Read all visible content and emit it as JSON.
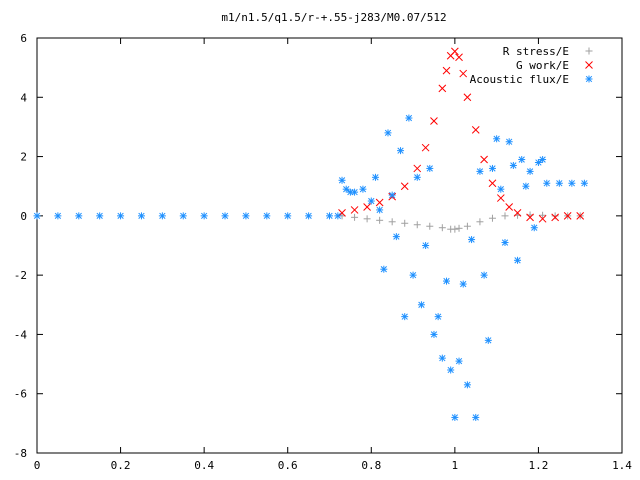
{
  "chart_data": {
    "type": "scatter",
    "title": "m1/n1.5/q1.5/r-+.55-j283/M0.07/512",
    "xlabel": "",
    "ylabel": "",
    "xlim": [
      0,
      1.4
    ],
    "ylim": [
      -8,
      6
    ],
    "x_ticks": [
      "0",
      "0.2",
      "0.4",
      "0.6",
      "0.8",
      "1",
      "1.2",
      "1.4"
    ],
    "y_ticks": [
      "6",
      "4",
      "2",
      "0",
      "-2",
      "-4",
      "-6",
      "-8"
    ],
    "grid": false,
    "legend_position": "top-right",
    "series": [
      {
        "name": "R stress/E",
        "marker": "+",
        "color": "#a0a0a0",
        "x": [
          0.73,
          0.76,
          0.79,
          0.82,
          0.85,
          0.88,
          0.91,
          0.94,
          0.97,
          0.99,
          1.0,
          1.01,
          1.03,
          1.06,
          1.09,
          1.12,
          1.15,
          1.18,
          1.21,
          1.24,
          1.27,
          1.3
        ],
        "y": [
          0.0,
          -0.05,
          -0.1,
          -0.15,
          -0.2,
          -0.25,
          -0.3,
          -0.35,
          -0.4,
          -0.45,
          -0.45,
          -0.42,
          -0.35,
          -0.2,
          -0.08,
          0.0,
          0.02,
          0.03,
          0.02,
          0.0,
          0.0,
          0.0
        ]
      },
      {
        "name": "G work/E",
        "marker": "x",
        "color": "#ff0000",
        "x": [
          0.73,
          0.76,
          0.79,
          0.82,
          0.85,
          0.88,
          0.91,
          0.93,
          0.95,
          0.97,
          0.98,
          0.99,
          1.0,
          1.01,
          1.02,
          1.03,
          1.05,
          1.07,
          1.09,
          1.11,
          1.13,
          1.15,
          1.18,
          1.21,
          1.24,
          1.27,
          1.3
        ],
        "y": [
          0.1,
          0.2,
          0.3,
          0.45,
          0.65,
          1.0,
          1.6,
          2.3,
          3.2,
          4.3,
          4.9,
          5.4,
          5.55,
          5.35,
          4.8,
          4.0,
          2.9,
          1.9,
          1.1,
          0.6,
          0.3,
          0.1,
          -0.05,
          -0.1,
          -0.05,
          0.0,
          0.0
        ]
      },
      {
        "name": "Acoustic flux/E",
        "marker": "*",
        "color": "#1e90ff",
        "x": [
          0.0,
          0.05,
          0.1,
          0.15,
          0.2,
          0.25,
          0.3,
          0.35,
          0.4,
          0.45,
          0.5,
          0.55,
          0.6,
          0.65,
          0.7,
          0.72,
          0.73,
          0.74,
          0.75,
          0.76,
          0.78,
          0.8,
          0.81,
          0.82,
          0.83,
          0.84,
          0.85,
          0.86,
          0.87,
          0.88,
          0.89,
          0.9,
          0.91,
          0.92,
          0.93,
          0.94,
          0.95,
          0.96,
          0.97,
          0.98,
          0.99,
          1.0,
          1.01,
          1.02,
          1.03,
          1.04,
          1.05,
          1.06,
          1.07,
          1.08,
          1.09,
          1.1,
          1.11,
          1.12,
          1.13,
          1.14,
          1.15,
          1.16,
          1.17,
          1.18,
          1.19,
          1.2,
          1.21,
          1.22,
          1.25,
          1.28,
          1.31
        ],
        "y": [
          0.0,
          0.0,
          0.0,
          0.0,
          0.0,
          0.0,
          0.0,
          0.0,
          0.0,
          0.0,
          0.0,
          0.0,
          0.0,
          0.0,
          0.0,
          0.0,
          1.2,
          0.9,
          0.8,
          0.8,
          0.9,
          0.5,
          1.3,
          0.2,
          -1.8,
          2.8,
          0.7,
          -0.7,
          2.2,
          -3.4,
          3.3,
          -2.0,
          1.3,
          -3.0,
          -1.0,
          1.6,
          -4.0,
          -3.4,
          -4.8,
          -2.2,
          -5.2,
          -6.8,
          -4.9,
          -2.3,
          -5.7,
          -0.8,
          -6.8,
          1.5,
          -2.0,
          -4.2,
          1.6,
          2.6,
          0.9,
          -0.9,
          2.5,
          1.7,
          -1.5,
          1.9,
          1.0,
          1.5,
          -0.4,
          1.8,
          1.9,
          1.1,
          1.1,
          1.1,
          1.1
        ]
      }
    ]
  }
}
